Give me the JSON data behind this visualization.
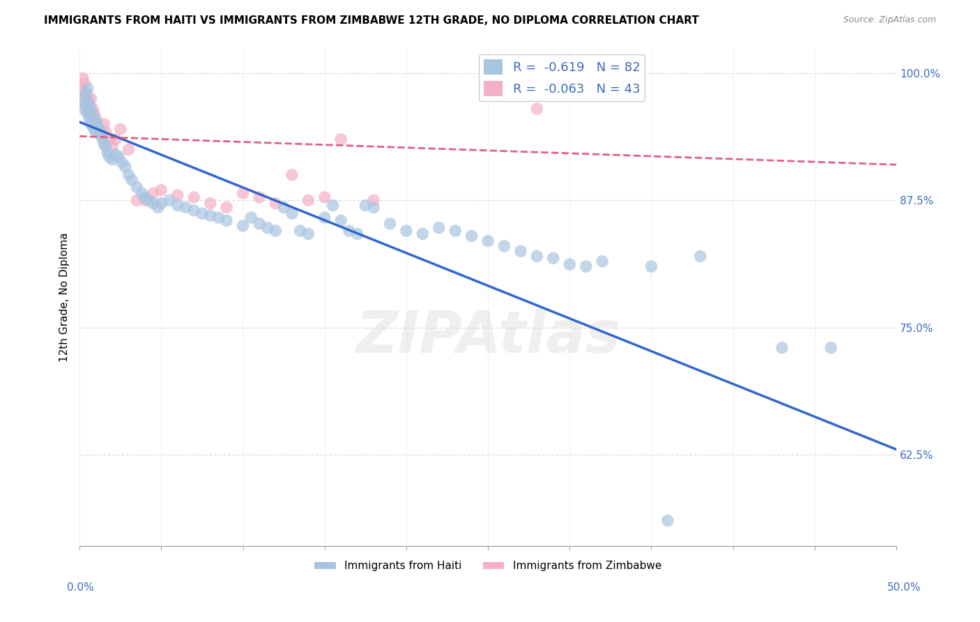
{
  "title": "IMMIGRANTS FROM HAITI VS IMMIGRANTS FROM ZIMBABWE 12TH GRADE, NO DIPLOMA CORRELATION CHART",
  "source": "Source: ZipAtlas.com",
  "ylabel": "12th Grade, No Diploma",
  "xlim": [
    0.0,
    0.5
  ],
  "ylim": [
    0.535,
    1.025
  ],
  "xtick_left_label": "0.0%",
  "xtick_right_label": "50.0%",
  "yticks": [
    0.625,
    0.75,
    0.875,
    1.0
  ],
  "yticklabels": [
    "62.5%",
    "75.0%",
    "87.5%",
    "100.0%"
  ],
  "haiti_R": -0.619,
  "haiti_N": 82,
  "zimbabwe_R": -0.063,
  "zimbabwe_N": 43,
  "haiti_color": "#a8c4e0",
  "zimbabwe_color": "#f4b0c4",
  "haiti_line_color": "#3366cc",
  "zimbabwe_line_color": "#e06080",
  "watermark": "ZIPAtlas",
  "haiti_x": [
    0.002,
    0.003,
    0.004,
    0.004,
    0.005,
    0.005,
    0.005,
    0.006,
    0.006,
    0.007,
    0.007,
    0.008,
    0.008,
    0.009,
    0.009,
    0.01,
    0.01,
    0.011,
    0.012,
    0.013,
    0.014,
    0.015,
    0.016,
    0.017,
    0.018,
    0.02,
    0.022,
    0.024,
    0.026,
    0.028,
    0.03,
    0.032,
    0.035,
    0.038,
    0.04,
    0.042,
    0.045,
    0.048,
    0.05,
    0.055,
    0.06,
    0.065,
    0.07,
    0.075,
    0.08,
    0.085,
    0.09,
    0.1,
    0.105,
    0.11,
    0.115,
    0.12,
    0.125,
    0.13,
    0.135,
    0.14,
    0.15,
    0.155,
    0.16,
    0.165,
    0.17,
    0.175,
    0.18,
    0.19,
    0.2,
    0.21,
    0.22,
    0.23,
    0.24,
    0.25,
    0.26,
    0.27,
    0.28,
    0.29,
    0.3,
    0.31,
    0.32,
    0.35,
    0.36,
    0.38,
    0.43,
    0.46
  ],
  "haiti_y": [
    0.965,
    0.975,
    0.968,
    0.98,
    0.96,
    0.972,
    0.985,
    0.955,
    0.968,
    0.95,
    0.962,
    0.948,
    0.96,
    0.945,
    0.955,
    0.942,
    0.952,
    0.948,
    0.945,
    0.94,
    0.935,
    0.93,
    0.928,
    0.922,
    0.918,
    0.915,
    0.92,
    0.918,
    0.912,
    0.908,
    0.9,
    0.895,
    0.888,
    0.882,
    0.878,
    0.875,
    0.872,
    0.868,
    0.872,
    0.875,
    0.87,
    0.868,
    0.865,
    0.862,
    0.86,
    0.858,
    0.855,
    0.85,
    0.858,
    0.852,
    0.848,
    0.845,
    0.868,
    0.862,
    0.845,
    0.842,
    0.858,
    0.87,
    0.855,
    0.845,
    0.842,
    0.87,
    0.868,
    0.852,
    0.845,
    0.842,
    0.848,
    0.845,
    0.84,
    0.835,
    0.83,
    0.825,
    0.82,
    0.818,
    0.812,
    0.81,
    0.815,
    0.81,
    0.56,
    0.82,
    0.73,
    0.73
  ],
  "zimbabwe_x": [
    0.001,
    0.002,
    0.002,
    0.003,
    0.003,
    0.004,
    0.004,
    0.005,
    0.005,
    0.006,
    0.006,
    0.007,
    0.007,
    0.008,
    0.009,
    0.01,
    0.011,
    0.012,
    0.013,
    0.015,
    0.016,
    0.018,
    0.02,
    0.022,
    0.025,
    0.03,
    0.035,
    0.04,
    0.045,
    0.05,
    0.06,
    0.07,
    0.08,
    0.09,
    0.1,
    0.11,
    0.12,
    0.13,
    0.14,
    0.15,
    0.16,
    0.18,
    0.28
  ],
  "zimbabwe_y": [
    0.985,
    0.995,
    0.978,
    0.972,
    0.99,
    0.968,
    0.98,
    0.962,
    0.975,
    0.962,
    0.97,
    0.975,
    0.958,
    0.965,
    0.96,
    0.955,
    0.95,
    0.945,
    0.94,
    0.95,
    0.942,
    0.935,
    0.928,
    0.935,
    0.945,
    0.925,
    0.875,
    0.875,
    0.882,
    0.885,
    0.88,
    0.878,
    0.872,
    0.868,
    0.882,
    0.878,
    0.872,
    0.9,
    0.875,
    0.878,
    0.935,
    0.875,
    0.965
  ],
  "haiti_trend_x0": 0.0,
  "haiti_trend_y0": 0.952,
  "haiti_trend_x1": 0.5,
  "haiti_trend_y1": 0.63,
  "zimbabwe_trend_x0": 0.0,
  "zimbabwe_trend_y0": 0.938,
  "zimbabwe_trend_x1": 0.5,
  "zimbabwe_trend_y1": 0.91,
  "background_color": "#ffffff",
  "grid_color": "#dddddd",
  "title_fontsize": 11,
  "tick_color": "#3a6bbf"
}
